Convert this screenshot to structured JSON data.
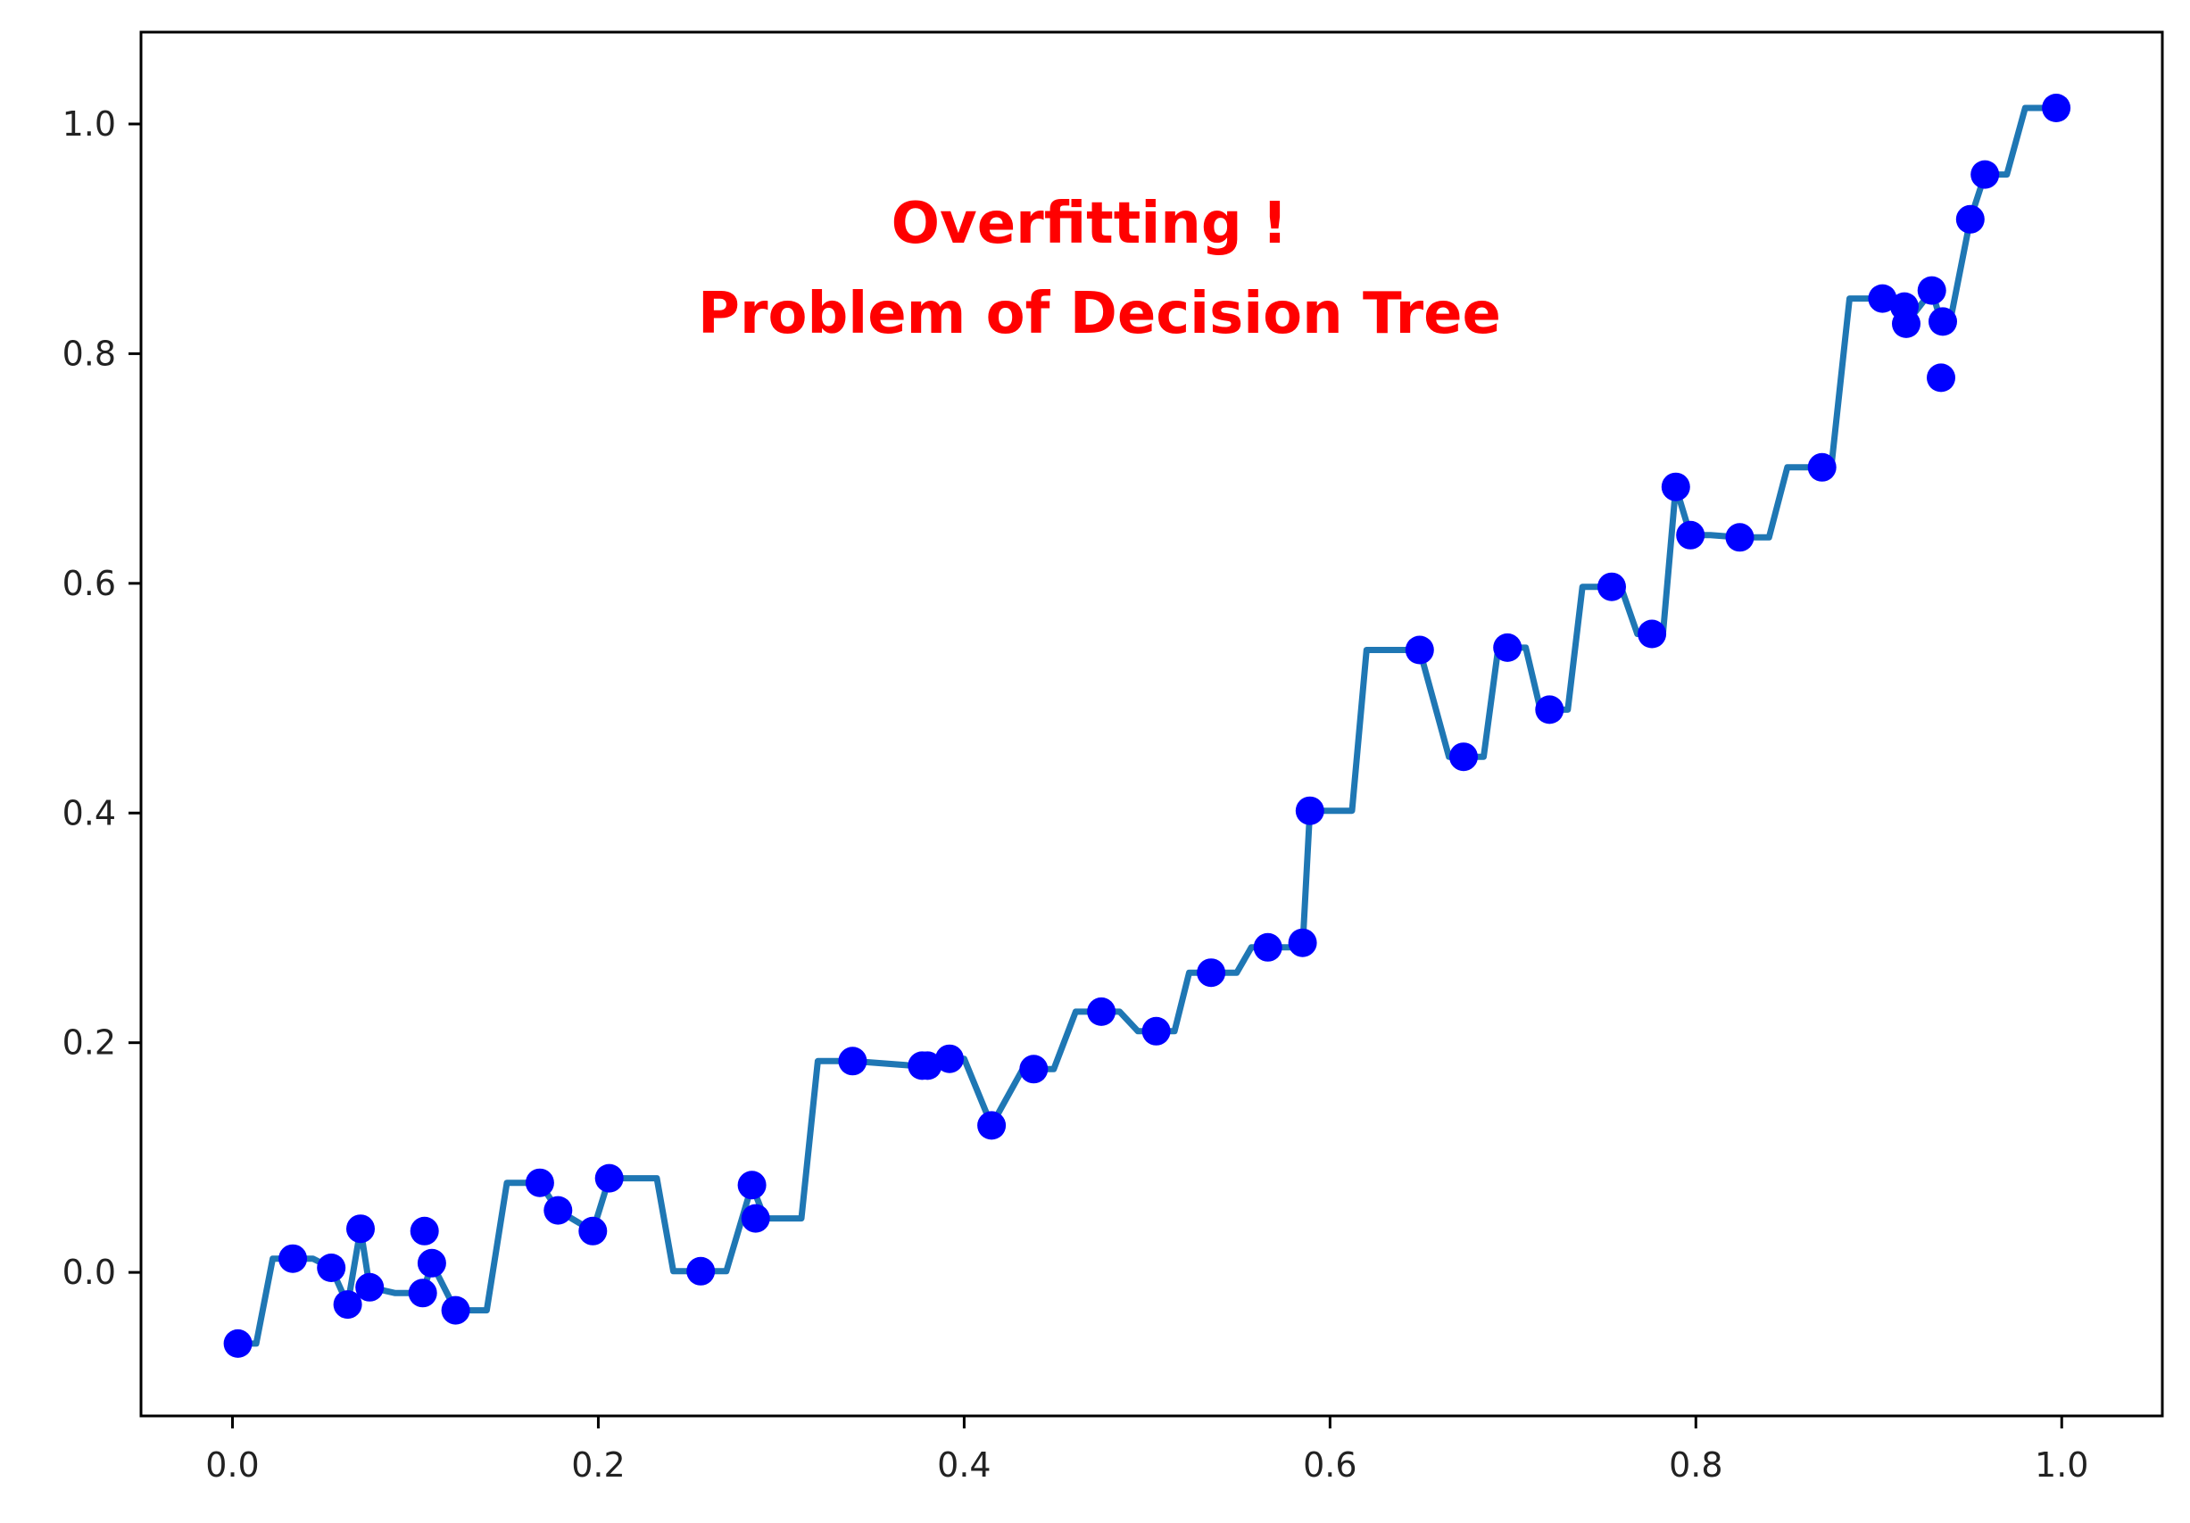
{
  "chart_data": {
    "type": "scatter",
    "title": "",
    "xlabel": "",
    "ylabel": "",
    "xlim": [
      -0.05,
      1.055
    ],
    "ylim": [
      -0.125,
      1.08
    ],
    "grid": false,
    "legend": "none",
    "x_ticks": [
      {
        "value": 0.0,
        "label": "0.0"
      },
      {
        "value": 0.2,
        "label": "0.2"
      },
      {
        "value": 0.4,
        "label": "0.4"
      },
      {
        "value": 0.6,
        "label": "0.6"
      },
      {
        "value": 0.8,
        "label": "0.8"
      },
      {
        "value": 1.0,
        "label": "1.0"
      }
    ],
    "y_ticks": [
      {
        "value": 0.0,
        "label": "0.0"
      },
      {
        "value": 0.2,
        "label": "0.2"
      },
      {
        "value": 0.4,
        "label": "0.4"
      },
      {
        "value": 0.6,
        "label": "0.6"
      },
      {
        "value": 0.8,
        "label": "0.8"
      },
      {
        "value": 1.0,
        "label": "1.0"
      }
    ],
    "annotation": {
      "lines": [
        "Overfitting !",
        "Problem of Decision Tree"
      ],
      "color": "#ff0000"
    },
    "scatter_series": {
      "color": "#0000ff",
      "points": [
        [
          0.003,
          -0.062
        ],
        [
          0.033,
          0.012
        ],
        [
          0.054,
          0.004
        ],
        [
          0.063,
          -0.028
        ],
        [
          0.07,
          0.038
        ],
        [
          0.075,
          -0.013
        ],
        [
          0.104,
          -0.018
        ],
        [
          0.105,
          0.036
        ],
        [
          0.109,
          0.008
        ],
        [
          0.122,
          -0.033
        ],
        [
          0.168,
          0.078
        ],
        [
          0.178,
          0.054
        ],
        [
          0.197,
          0.036
        ],
        [
          0.206,
          0.082
        ],
        [
          0.256,
          0.001
        ],
        [
          0.284,
          0.076
        ],
        [
          0.286,
          0.047
        ],
        [
          0.339,
          0.184
        ],
        [
          0.377,
          0.18
        ],
        [
          0.38,
          0.18
        ],
        [
          0.392,
          0.186
        ],
        [
          0.415,
          0.128
        ],
        [
          0.438,
          0.177
        ],
        [
          0.475,
          0.227
        ],
        [
          0.505,
          0.21
        ],
        [
          0.535,
          0.261
        ],
        [
          0.566,
          0.283
        ],
        [
          0.585,
          0.287
        ],
        [
          0.589,
          0.402
        ],
        [
          0.649,
          0.542
        ],
        [
          0.673,
          0.449
        ],
        [
          0.697,
          0.544
        ],
        [
          0.72,
          0.49
        ],
        [
          0.754,
          0.597
        ],
        [
          0.776,
          0.556
        ],
        [
          0.789,
          0.684
        ],
        [
          0.797,
          0.642
        ],
        [
          0.824,
          0.64
        ],
        [
          0.869,
          0.701
        ],
        [
          0.902,
          0.848
        ],
        [
          0.914,
          0.841
        ],
        [
          0.915,
          0.826
        ],
        [
          0.929,
          0.855
        ],
        [
          0.935,
          0.828
        ],
        [
          0.934,
          0.779
        ],
        [
          0.95,
          0.917
        ],
        [
          0.958,
          0.956
        ],
        [
          0.997,
          1.014
        ]
      ]
    },
    "line_series": {
      "color": "#1f77b4",
      "points": [
        [
          0.003,
          -0.062
        ],
        [
          0.013,
          -0.062
        ],
        [
          0.022,
          0.012
        ],
        [
          0.044,
          0.012
        ],
        [
          0.054,
          0.004
        ],
        [
          0.063,
          -0.028
        ],
        [
          0.07,
          0.038
        ],
        [
          0.075,
          -0.013
        ],
        [
          0.089,
          -0.018
        ],
        [
          0.104,
          -0.018
        ],
        [
          0.109,
          0.008
        ],
        [
          0.122,
          -0.033
        ],
        [
          0.139,
          -0.033
        ],
        [
          0.15,
          0.078
        ],
        [
          0.168,
          0.078
        ],
        [
          0.178,
          0.054
        ],
        [
          0.197,
          0.036
        ],
        [
          0.206,
          0.082
        ],
        [
          0.232,
          0.082
        ],
        [
          0.241,
          0.001
        ],
        [
          0.27,
          0.001
        ],
        [
          0.284,
          0.076
        ],
        [
          0.291,
          0.047
        ],
        [
          0.311,
          0.047
        ],
        [
          0.32,
          0.184
        ],
        [
          0.339,
          0.184
        ],
        [
          0.372,
          0.18
        ],
        [
          0.392,
          0.186
        ],
        [
          0.4,
          0.186
        ],
        [
          0.415,
          0.128
        ],
        [
          0.432,
          0.177
        ],
        [
          0.449,
          0.177
        ],
        [
          0.461,
          0.227
        ],
        [
          0.485,
          0.227
        ],
        [
          0.495,
          0.21
        ],
        [
          0.515,
          0.21
        ],
        [
          0.523,
          0.261
        ],
        [
          0.549,
          0.261
        ],
        [
          0.557,
          0.283
        ],
        [
          0.585,
          0.283
        ],
        [
          0.589,
          0.402
        ],
        [
          0.612,
          0.402
        ],
        [
          0.62,
          0.542
        ],
        [
          0.649,
          0.542
        ],
        [
          0.665,
          0.449
        ],
        [
          0.684,
          0.449
        ],
        [
          0.692,
          0.544
        ],
        [
          0.707,
          0.544
        ],
        [
          0.715,
          0.49
        ],
        [
          0.73,
          0.49
        ],
        [
          0.738,
          0.597
        ],
        [
          0.759,
          0.597
        ],
        [
          0.768,
          0.556
        ],
        [
          0.782,
          0.556
        ],
        [
          0.789,
          0.684
        ],
        [
          0.797,
          0.642
        ],
        [
          0.808,
          0.642
        ],
        [
          0.824,
          0.64
        ],
        [
          0.84,
          0.64
        ],
        [
          0.85,
          0.701
        ],
        [
          0.874,
          0.701
        ],
        [
          0.884,
          0.848
        ],
        [
          0.902,
          0.848
        ],
        [
          0.909,
          0.843
        ],
        [
          0.915,
          0.826
        ],
        [
          0.929,
          0.855
        ],
        [
          0.934,
          0.828
        ],
        [
          0.939,
          0.828
        ],
        [
          0.95,
          0.917
        ],
        [
          0.958,
          0.956
        ],
        [
          0.97,
          0.956
        ],
        [
          0.98,
          1.014
        ],
        [
          0.997,
          1.014
        ]
      ]
    }
  }
}
